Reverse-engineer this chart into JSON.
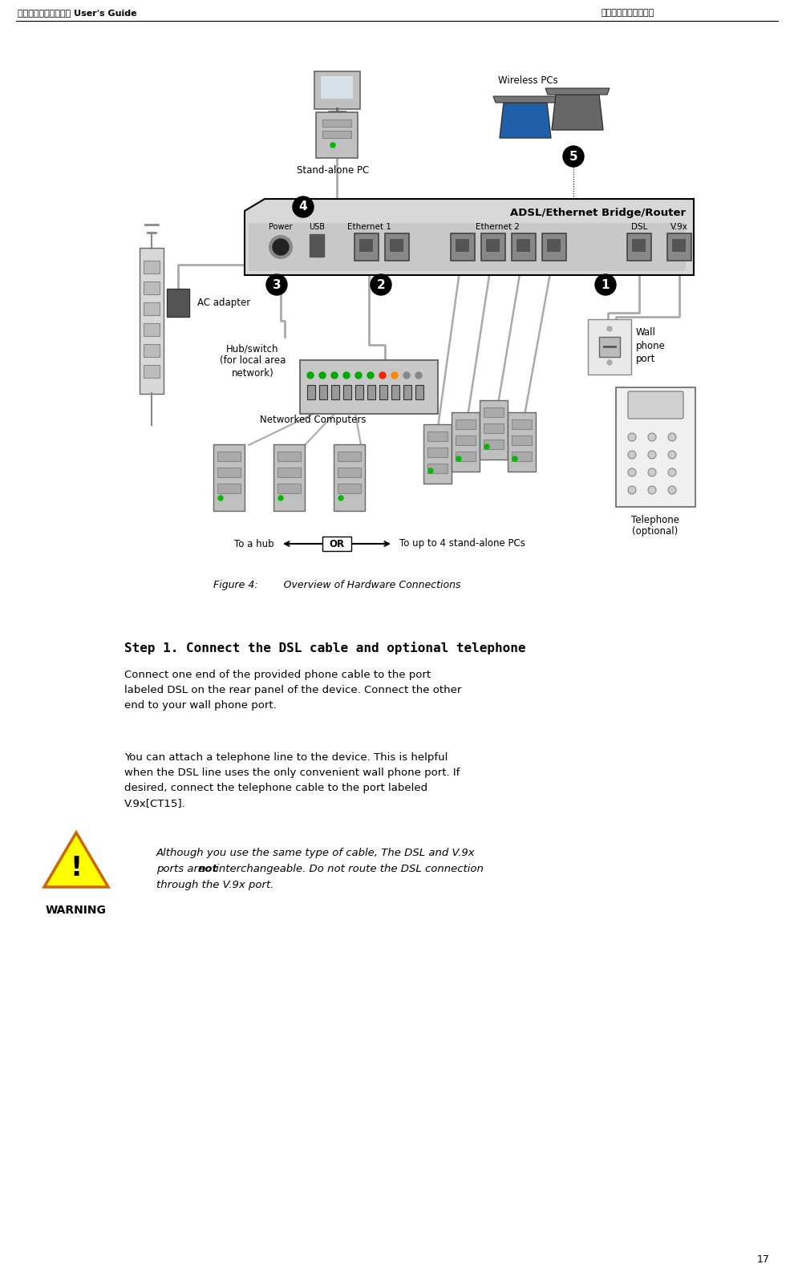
{
  "bg_color": "#ffffff",
  "header_left": "錯誤！尚未定義樣式。 User's Guide",
  "header_right": "錯誤！尚未定義樣式。",
  "page_number": "17",
  "figure_caption": "Figure 4:        Overview of Hardware Connections",
  "step_title": "Step 1. Connect the DSL cable and optional telephone",
  "para1": "Connect one end of the provided phone cable to the port\nlabeled DSL on the rear panel of the device. Connect the other\nend to your wall phone port.",
  "para2": "You can attach a telephone line to the device. This is helpful\nwhen the DSL line uses the only convenient wall phone port. If\ndesired, connect the telephone cable to the port labeled\nV.9x[CT15].",
  "warning_text_1": "Although you use the same type of cable, The DSL and V.9x",
  "warning_text_2a": "ports are ",
  "warning_text_2b": "not",
  "warning_text_2c": " interchangeable. Do not route the DSL connection",
  "warning_text_3": "through the V.9x port.",
  "warning_label": "WARNING",
  "or_label": "OR",
  "to_hub_label": "To a hub",
  "to_pcs_label": "To up to 4 stand-alone PCs",
  "router_label": "ADSL/Ethernet Bridge/Router",
  "port_labels": [
    "Power",
    "USB",
    "Ethernet 1",
    "Ethernet 2",
    "DSL",
    "V.9x"
  ],
  "labels_stand_alone_pc": "Stand-alone PC",
  "labels_wireless_pcs": "Wireless PCs",
  "labels_ac_adapter": "AC adapter",
  "labels_hub_switch_1": "Hub/switch",
  "labels_hub_switch_2": "(for local area",
  "labels_hub_switch_3": "network)",
  "labels_networked": "Networked Computers",
  "labels_wall_phone_1": "Wall",
  "labels_wall_phone_2": "phone",
  "labels_wall_phone_3": "port",
  "labels_telephone_1": "Telephone",
  "labels_telephone_2": "(optional)"
}
